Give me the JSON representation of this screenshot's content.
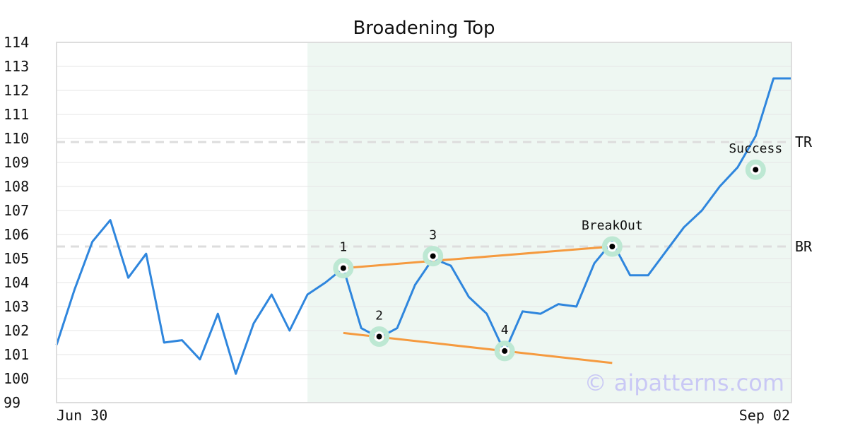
{
  "chart_data": {
    "type": "line",
    "title": "Broadening Top",
    "xlabel": "",
    "ylabel": "",
    "ylim": [
      99,
      114
    ],
    "grid": true,
    "x_tick_labels": [
      "Jun 30",
      "Sep 02"
    ],
    "y_ticks": [
      99,
      100,
      101,
      102,
      103,
      104,
      105,
      106,
      107,
      108,
      109,
      110,
      111,
      112,
      113,
      114
    ],
    "series": [
      {
        "color": "#2f86dd",
        "values": [
          101.4,
          103.7,
          105.7,
          106.6,
          104.2,
          105.2,
          101.5,
          101.6,
          100.8,
          102.7,
          100.2,
          102.3,
          103.5,
          102.0,
          103.5,
          104.0,
          104.6,
          102.1,
          101.7,
          102.1,
          103.9,
          105.0,
          104.7,
          103.4,
          102.7,
          101.1,
          102.8,
          102.7,
          103.1,
          103.0,
          104.8,
          105.7,
          104.3,
          104.3,
          105.3,
          106.3,
          107.0,
          108.0,
          108.8,
          110.1,
          112.5,
          112.5
        ]
      }
    ],
    "highlight_region": {
      "start_index": 14,
      "end_index": 41,
      "color": "#eef7f2"
    },
    "reference_lines": [
      {
        "label": "TR",
        "value": 109.85
      },
      {
        "label": "BR",
        "value": 105.5
      }
    ],
    "pattern_points": [
      {
        "label": "1",
        "index": 16,
        "value": 104.6
      },
      {
        "label": "2",
        "index": 18,
        "value": 101.75
      },
      {
        "label": "3",
        "index": 21,
        "value": 105.1
      },
      {
        "label": "4",
        "index": 25,
        "value": 101.15
      },
      {
        "label": "BreakOut",
        "index": 31,
        "value": 105.5
      },
      {
        "label": "Success",
        "index": 39,
        "value": 108.7
      }
    ],
    "trend_lines": [
      {
        "name": "upper",
        "color": "#f59a3f",
        "from": {
          "index": 16,
          "value": 104.6
        },
        "to": {
          "index": 31,
          "value": 105.5
        }
      },
      {
        "name": "lower",
        "color": "#f59a3f",
        "from": {
          "index": 16,
          "value": 101.9
        },
        "to": {
          "index": 31,
          "value": 100.65
        }
      }
    ],
    "watermark": "© aipatterns.com"
  }
}
